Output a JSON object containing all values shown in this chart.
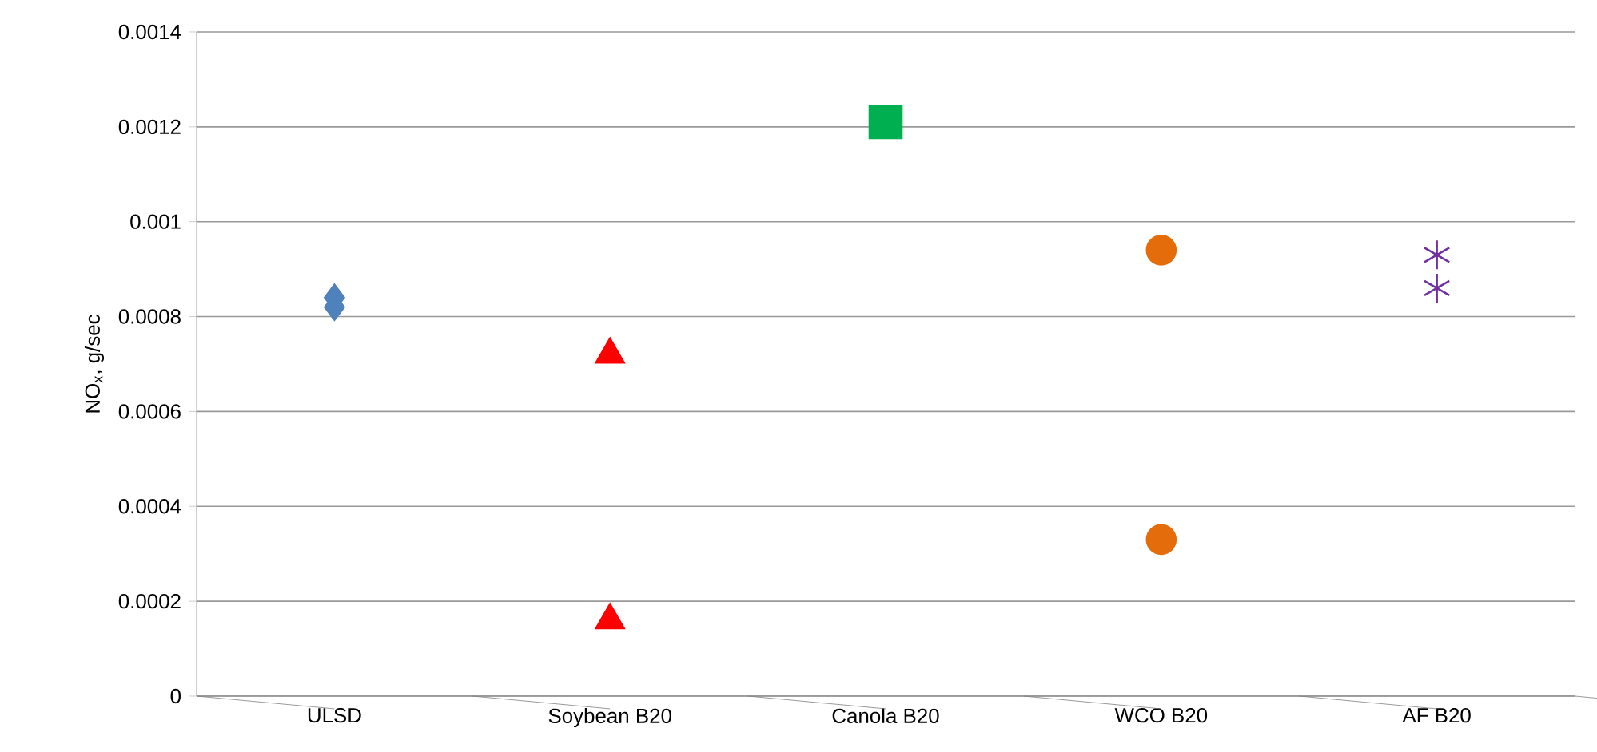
{
  "chart_data": {
    "type": "scatter",
    "ylabel": "NO$_{x}$, g/sec",
    "categories": [
      "ULSD",
      "Soybean B20",
      "Canola B20",
      "WCO B20",
      "AF B20"
    ],
    "series": [
      {
        "x": [
          "ULSD",
          "ULSD"
        ],
        "values": [
          0.00084,
          0.00082
        ],
        "color": "#4f81bd",
        "marker": "diamond"
      },
      {
        "x": [
          "Soybean B20",
          "Soybean B20"
        ],
        "values": [
          0.00072,
          0.00016
        ],
        "color": "#ff0000",
        "marker": "triangle"
      },
      {
        "x": [
          "Canola B20"
        ],
        "values": [
          0.00121
        ],
        "color": "#00b050",
        "marker": "square"
      },
      {
        "x": [
          "WCO B20",
          "WCO B20"
        ],
        "values": [
          0.00094,
          0.00033
        ],
        "color": "#e46c0a",
        "marker": "circle"
      },
      {
        "x": [
          "AF B20",
          "AF B20"
        ],
        "values": [
          0.00093,
          0.00086
        ],
        "color": "#7030a0",
        "marker": "cross"
      }
    ],
    "ylim": [
      0,
      0.0014
    ],
    "yticks": [
      0,
      0.0002,
      0.0004,
      0.0006,
      0.0008,
      0.001,
      0.0012,
      0.0014
    ],
    "grid": "y"
  }
}
